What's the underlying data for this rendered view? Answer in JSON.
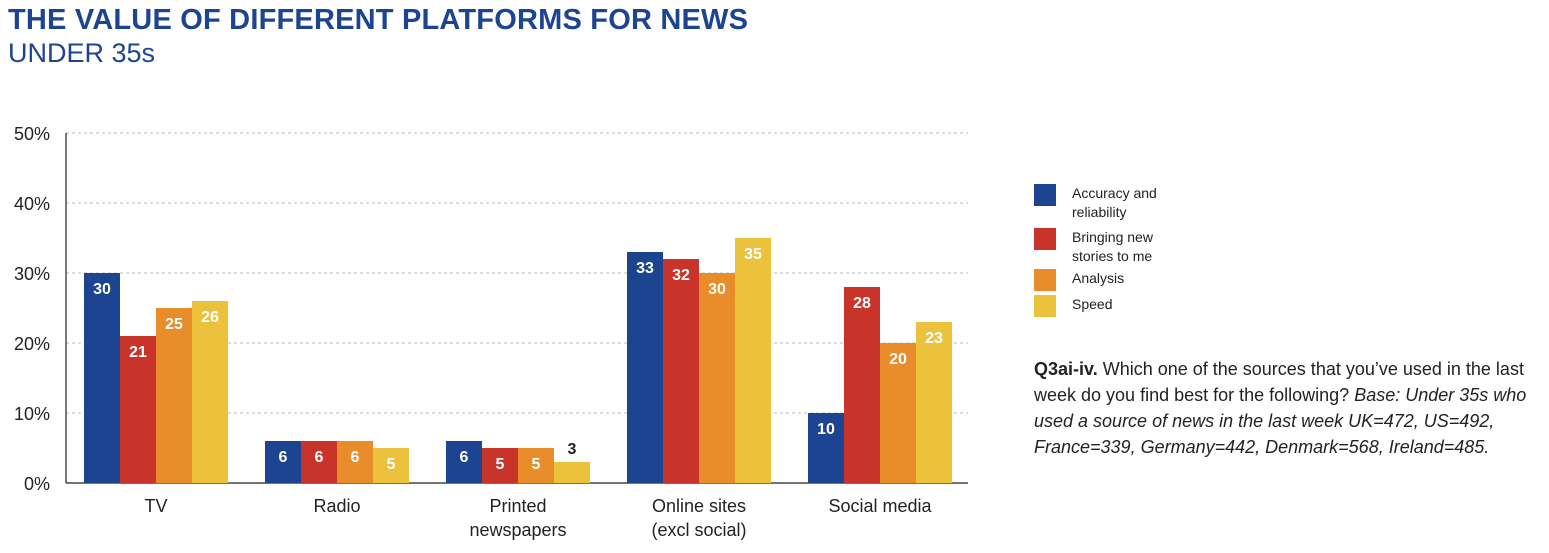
{
  "header": {
    "title": "THE VALUE OF DIFFERENT PLATFORMS FOR NEWS",
    "subtitle": "UNDER 35s"
  },
  "colors": {
    "accuracy": "#1d4490",
    "bringing": "#c8342a",
    "analysis": "#e88d2a",
    "speed": "#ecc23c",
    "title": "#1d4490",
    "grid": "#bbbbbb",
    "axis": "#222222"
  },
  "legend": {
    "items": [
      {
        "label_lines": [
          "Accuracy and",
          "reliability"
        ],
        "color": "#1d4490"
      },
      {
        "label_lines": [
          "Bringing new",
          "stories to me"
        ],
        "color": "#c8342a"
      },
      {
        "label_lines": [
          "Analysis"
        ],
        "color": "#e88d2a"
      },
      {
        "label_lines": [
          "Speed"
        ],
        "color": "#ecc23c"
      }
    ]
  },
  "note": {
    "question": "Q3ai-iv.",
    "text": " Which one of the sources that you’ve used in the last week do you find best for the following? ",
    "base": "Base: Under 35s who used a source of news in the last week UK=472, US=492, France=339, Germany=442, Denmark=568, Ireland=485."
  },
  "chart_data": {
    "type": "bar",
    "categories": [
      [
        "TV"
      ],
      [
        "Radio"
      ],
      [
        "Printed",
        "newspapers"
      ],
      [
        "Online sites",
        "(excl social)"
      ],
      [
        "Social media"
      ]
    ],
    "series": [
      {
        "name": "Accuracy and reliability",
        "color": "#1d4490",
        "values": [
          30,
          6,
          6,
          33,
          10
        ]
      },
      {
        "name": "Bringing new stories to me",
        "color": "#c8342a",
        "values": [
          21,
          6,
          5,
          32,
          28
        ]
      },
      {
        "name": "Analysis",
        "color": "#e88d2a",
        "values": [
          25,
          6,
          5,
          30,
          20
        ]
      },
      {
        "name": "Speed",
        "color": "#ecc23c",
        "values": [
          26,
          5,
          3,
          35,
          23
        ]
      }
    ],
    "ylim": [
      0,
      50
    ],
    "yticks": [
      0,
      10,
      20,
      30,
      40,
      50
    ],
    "ytick_labels": [
      "0%",
      "10%",
      "20%",
      "30%",
      "40%",
      "50%"
    ],
    "grid": true,
    "legend_position": "right",
    "xlabel": "",
    "ylabel": ""
  }
}
